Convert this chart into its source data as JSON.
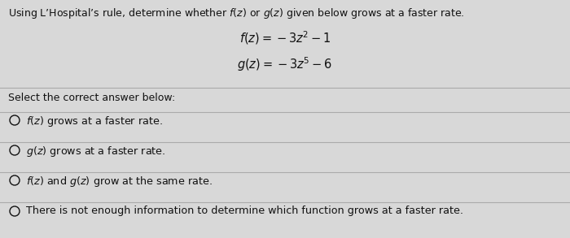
{
  "title_text": "Using L’Hospital’s rule, determine whether $f(z)$ or $g(z)$ given below grows at a faster rate.",
  "eq1": "$f(z) = -3z^2 - 1$",
  "eq2": "$g(z) = -3z^5 - 6$",
  "select_label": "Select the correct answer below:",
  "options": [
    "$f(z)$ grows at a faster rate.",
    "$g(z)$ grows at a faster rate.",
    "$f(z)$ and $g(z)$ grow at the same rate.",
    "There is not enough information to determine which function grows at a faster rate."
  ],
  "bg_color": "#d8d8d8",
  "line_color": "#aaaaaa",
  "text_color": "#111111",
  "title_fontsize": 9.0,
  "eq_fontsize": 10.5,
  "option_fontsize": 9.2,
  "label_fontsize": 9.0
}
